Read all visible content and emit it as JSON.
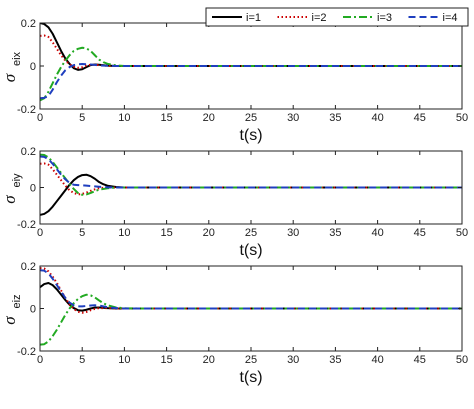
{
  "chart_data": [
    {
      "type": "line",
      "xlabel": "t(s)",
      "ylabel_symbol": "σ",
      "ylabel_subscript": "eix",
      "xlim": [
        0,
        50
      ],
      "ylim": [
        -0.2,
        0.2
      ],
      "xticks": [
        0,
        5,
        10,
        15,
        20,
        25,
        30,
        35,
        40,
        45,
        50
      ],
      "yticks": [
        -0.2,
        0,
        0.2
      ],
      "grid": false,
      "legend": "top-right",
      "series": [
        {
          "name": "i=1",
          "color": "#000000",
          "dash": "solid",
          "x": [
            0,
            0.5,
            1,
            1.5,
            2,
            2.5,
            3,
            3.5,
            4,
            4.5,
            5,
            5.5,
            6,
            6.5,
            7,
            8,
            9,
            10,
            12,
            15,
            20,
            30,
            40,
            50
          ],
          "y": [
            0.2,
            0.195,
            0.18,
            0.15,
            0.11,
            0.07,
            0.035,
            0.01,
            -0.01,
            -0.018,
            -0.015,
            -0.005,
            0.004,
            0.007,
            0.006,
            0.002,
            0,
            0,
            0,
            0,
            0,
            0,
            0,
            0
          ]
        },
        {
          "name": "i=2",
          "color": "#cc0000",
          "dash": "dotted",
          "x": [
            0,
            0.5,
            1,
            1.5,
            2,
            2.5,
            3,
            3.5,
            4,
            4.5,
            5,
            5.5,
            6,
            6.5,
            7,
            8,
            9,
            10,
            12,
            15,
            20,
            30,
            40,
            50
          ],
          "y": [
            0.14,
            0.142,
            0.135,
            0.11,
            0.08,
            0.05,
            0.025,
            0.008,
            -0.003,
            -0.008,
            -0.006,
            0.002,
            0.006,
            0.006,
            0.004,
            0.001,
            0,
            0,
            0,
            0,
            0,
            0,
            0,
            0
          ]
        },
        {
          "name": "i=3",
          "color": "#22aa22",
          "dash": "dashdot",
          "x": [
            0,
            0.5,
            1,
            1.5,
            2,
            2.5,
            3,
            3.5,
            4,
            4.5,
            5,
            5.5,
            6,
            6.5,
            7,
            7.5,
            8,
            9,
            10,
            12,
            15,
            20,
            30,
            40,
            50
          ],
          "y": [
            -0.16,
            -0.15,
            -0.12,
            -0.08,
            -0.04,
            -0.005,
            0.025,
            0.05,
            0.07,
            0.08,
            0.085,
            0.082,
            0.07,
            0.05,
            0.03,
            0.018,
            0.01,
            0.003,
            0,
            0,
            0,
            0,
            0,
            0,
            0
          ]
        },
        {
          "name": "i=4",
          "color": "#1f3fbf",
          "dash": "dashed",
          "x": [
            0,
            0.5,
            1,
            1.5,
            2,
            2.5,
            3,
            3.5,
            4,
            4.5,
            5,
            5.5,
            6,
            6.5,
            7,
            8,
            9,
            10,
            12,
            15,
            20,
            30,
            40,
            50
          ],
          "y": [
            -0.15,
            -0.148,
            -0.14,
            -0.11,
            -0.075,
            -0.045,
            -0.02,
            -0.005,
            0.004,
            0.008,
            0.009,
            0.008,
            0.007,
            0.005,
            0.003,
            0.001,
            0,
            0,
            0,
            0,
            0,
            0,
            0,
            0
          ]
        }
      ]
    },
    {
      "type": "line",
      "xlabel": "t(s)",
      "ylabel_symbol": "σ",
      "ylabel_subscript": "eiy",
      "xlim": [
        0,
        50
      ],
      "ylim": [
        -0.2,
        0.2
      ],
      "xticks": [
        0,
        5,
        10,
        15,
        20,
        25,
        30,
        35,
        40,
        45,
        50
      ],
      "yticks": [
        -0.2,
        0,
        0.2
      ],
      "grid": false,
      "series": [
        {
          "name": "i=1",
          "color": "#000000",
          "dash": "solid",
          "x": [
            0,
            0.5,
            1,
            1.5,
            2,
            2.5,
            3,
            3.5,
            4,
            4.5,
            5,
            5.5,
            6,
            6.5,
            7,
            7.5,
            8,
            9,
            10,
            12,
            15,
            20,
            30,
            40,
            50
          ],
          "y": [
            -0.15,
            -0.145,
            -0.13,
            -0.105,
            -0.075,
            -0.045,
            -0.015,
            0.015,
            0.04,
            0.058,
            0.068,
            0.07,
            0.062,
            0.048,
            0.03,
            0.018,
            0.01,
            0.003,
            0,
            0,
            0,
            0,
            0,
            0,
            0
          ]
        },
        {
          "name": "i=2",
          "color": "#cc0000",
          "dash": "dotted",
          "x": [
            0,
            0.5,
            1,
            1.5,
            2,
            2.5,
            3,
            3.5,
            4,
            4.5,
            5,
            5.5,
            6,
            6.5,
            7,
            8,
            9,
            10,
            12,
            15,
            20,
            30,
            40,
            50
          ],
          "y": [
            0.13,
            0.132,
            0.125,
            0.1,
            0.07,
            0.04,
            0.01,
            -0.015,
            -0.03,
            -0.038,
            -0.035,
            -0.028,
            -0.018,
            -0.01,
            -0.004,
            0,
            0,
            0,
            0,
            0,
            0,
            0,
            0,
            0
          ]
        },
        {
          "name": "i=3",
          "color": "#22aa22",
          "dash": "dashdot",
          "x": [
            0,
            0.5,
            1,
            1.5,
            2,
            2.5,
            3,
            3.5,
            4,
            4.5,
            5,
            5.5,
            6,
            6.5,
            7,
            8,
            9,
            10,
            12,
            15,
            20,
            30,
            40,
            50
          ],
          "y": [
            0.18,
            0.178,
            0.165,
            0.14,
            0.11,
            0.08,
            0.05,
            0.02,
            -0.008,
            -0.03,
            -0.04,
            -0.038,
            -0.03,
            -0.02,
            -0.012,
            -0.004,
            0,
            0,
            0,
            0,
            0,
            0,
            0,
            0
          ]
        },
        {
          "name": "i=4",
          "color": "#1f3fbf",
          "dash": "dashed",
          "x": [
            0,
            0.5,
            1,
            1.5,
            2,
            2.5,
            3,
            3.5,
            4,
            4.5,
            5,
            5.5,
            6,
            6.5,
            7,
            8,
            9,
            10,
            12,
            15,
            20,
            30,
            40,
            50
          ],
          "y": [
            0.17,
            0.168,
            0.155,
            0.13,
            0.1,
            0.07,
            0.045,
            0.025,
            0.015,
            0.013,
            0.012,
            0.01,
            0.008,
            0.006,
            0.004,
            0.001,
            0,
            0,
            0,
            0,
            0,
            0,
            0,
            0
          ]
        }
      ]
    },
    {
      "type": "line",
      "xlabel": "t(s)",
      "ylabel_symbol": "σ",
      "ylabel_subscript": "eiz",
      "xlim": [
        0,
        50
      ],
      "ylim": [
        -0.2,
        0.2
      ],
      "xticks": [
        0,
        5,
        10,
        15,
        20,
        25,
        30,
        35,
        40,
        45,
        50
      ],
      "yticks": [
        -0.2,
        0,
        0.2
      ],
      "grid": false,
      "series": [
        {
          "name": "i=1",
          "color": "#000000",
          "dash": "solid",
          "x": [
            0,
            0.5,
            1,
            1.5,
            2,
            2.5,
            3,
            3.5,
            4,
            4.5,
            5,
            5.5,
            6,
            6.5,
            7,
            8,
            9,
            10,
            12,
            15,
            20,
            30,
            40,
            50
          ],
          "y": [
            0.1,
            0.115,
            0.12,
            0.11,
            0.09,
            0.065,
            0.04,
            0.018,
            0.002,
            -0.008,
            -0.01,
            -0.006,
            0,
            0.004,
            0.005,
            0.002,
            0,
            0,
            0,
            0,
            0,
            0,
            0,
            0
          ]
        },
        {
          "name": "i=2",
          "color": "#cc0000",
          "dash": "dotted",
          "x": [
            0,
            0.5,
            1,
            1.5,
            2,
            2.5,
            3,
            3.5,
            4,
            4.5,
            5,
            5.5,
            6,
            6.5,
            7,
            8,
            9,
            10,
            12,
            15,
            20,
            30,
            40,
            50
          ],
          "y": [
            0.19,
            0.188,
            0.175,
            0.15,
            0.12,
            0.085,
            0.05,
            0.02,
            -0.002,
            -0.015,
            -0.02,
            -0.016,
            -0.008,
            -0.002,
            0.002,
            0.002,
            0,
            0,
            0,
            0,
            0,
            0,
            0,
            0
          ]
        },
        {
          "name": "i=3",
          "color": "#22aa22",
          "dash": "dashdot",
          "x": [
            0,
            0.5,
            1,
            1.5,
            2,
            2.5,
            3,
            3.5,
            4,
            4.5,
            5,
            5.5,
            6,
            6.5,
            7,
            7.5,
            8,
            9,
            10,
            12,
            15,
            20,
            30,
            40,
            50
          ],
          "y": [
            -0.17,
            -0.168,
            -0.155,
            -0.13,
            -0.1,
            -0.065,
            -0.03,
            0,
            0.025,
            0.045,
            0.058,
            0.065,
            0.062,
            0.052,
            0.038,
            0.025,
            0.015,
            0.005,
            0.001,
            0,
            0,
            0,
            0,
            0,
            0
          ]
        },
        {
          "name": "i=4",
          "color": "#1f3fbf",
          "dash": "dashed",
          "x": [
            0,
            0.5,
            1,
            1.5,
            2,
            2.5,
            3,
            3.5,
            4,
            4.5,
            5,
            5.5,
            6,
            6.5,
            7,
            7.5,
            8,
            9,
            10,
            12,
            15,
            20,
            30,
            40,
            50
          ],
          "y": [
            0.18,
            0.178,
            0.165,
            0.14,
            0.11,
            0.08,
            0.05,
            0.028,
            0.015,
            0.01,
            0.01,
            0.012,
            0.014,
            0.015,
            0.014,
            0.01,
            0.006,
            0.002,
            0,
            0,
            0,
            0,
            0,
            0,
            0
          ]
        }
      ]
    }
  ]
}
